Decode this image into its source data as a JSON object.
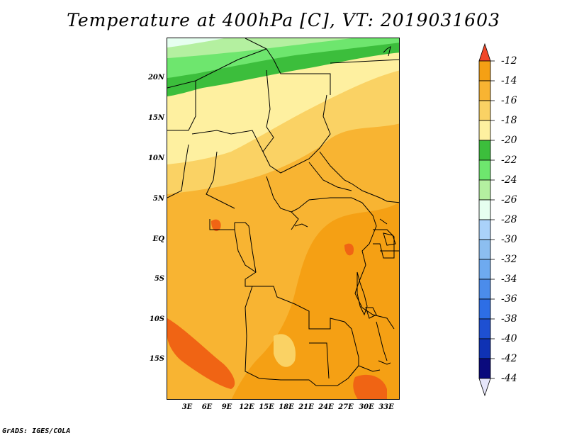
{
  "title": "Temperature at 400hPa [C], VT: 2019031603",
  "footer": "GrADS: IGES/COLA",
  "map": {
    "variable": "Temperature",
    "level": "400hPa",
    "units": "C",
    "valid_time": "2019031603",
    "lat_labels": [
      "20N",
      "15N",
      "10N",
      "5N",
      "EQ",
      "5S",
      "10S",
      "15S"
    ],
    "lon_labels": [
      "3E",
      "6E",
      "9E",
      "12E",
      "15E",
      "18E",
      "21E",
      "24E",
      "27E",
      "30E",
      "33E"
    ],
    "colors": {
      "warm_dark": "#f06414",
      "warm": "#f5a014",
      "warm_mid": "#f8b432",
      "warm_light": "#fad264",
      "pale_yellow": "#fef0a0",
      "green_dark": "#3cbe3c",
      "green": "#6ee66e",
      "green_light": "#b4f0a0",
      "boundary": "#000000"
    }
  },
  "colorbar": {
    "labels": [
      "-12",
      "-14",
      "-16",
      "-18",
      "-20",
      "-22",
      "-24",
      "-26",
      "-28",
      "-30",
      "-32",
      "-34",
      "-36",
      "-38",
      "-40",
      "-42",
      "-44"
    ],
    "colors": [
      "#f06414",
      "#f5a014",
      "#f8b432",
      "#fad264",
      "#fef0a0",
      "#3cbe3c",
      "#6ee66e",
      "#b4f0a0",
      "#e6fff0",
      "#aad2fa",
      "#8cbef0",
      "#6eaaf0",
      "#4b8ceb",
      "#2d6ee6",
      "#1e50d2",
      "#0f32b4",
      "#0a0a7d"
    ],
    "top_arrow_color": "#f04628",
    "bottom_arrow_color": "#e6e6fa"
  }
}
